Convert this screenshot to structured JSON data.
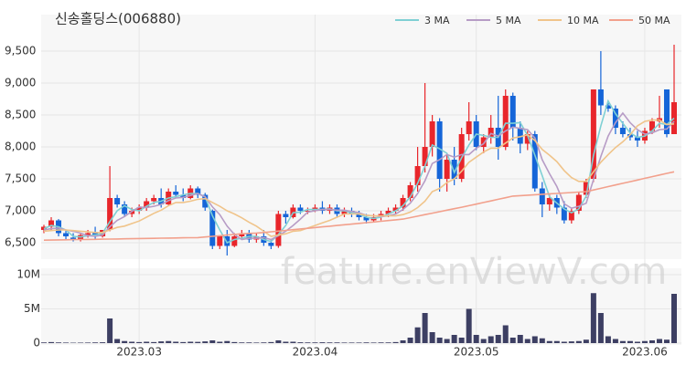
{
  "chart_data": {
    "type": "candlestick",
    "title": "신송홀딩스(006880)",
    "watermark": "feature.enViewV.com",
    "categories": [
      null,
      null,
      null,
      null,
      null,
      null,
      null,
      null,
      null,
      null,
      null,
      null,
      null,
      "2023.03",
      null,
      null,
      null,
      null,
      null,
      null,
      null,
      null,
      null,
      null,
      null,
      null,
      null,
      null,
      null,
      null,
      null,
      null,
      null,
      null,
      null,
      null,
      null,
      "2023.04",
      null,
      null,
      null,
      null,
      null,
      null,
      null,
      null,
      null,
      null,
      null,
      null,
      null,
      null,
      null,
      null,
      null,
      null,
      null,
      null,
      null,
      "2023.05",
      null,
      null,
      null,
      null,
      null,
      null,
      null,
      null,
      null,
      null,
      null,
      null,
      null,
      null,
      null,
      null,
      null,
      null,
      null,
      null,
      null,
      null,
      "2023.06",
      null,
      null,
      null,
      null
    ],
    "open": [
      6700,
      6750,
      6850,
      6650,
      6580,
      6550,
      6600,
      6650,
      6600,
      6700,
      7200,
      7100,
      6950,
      7000,
      7050,
      7150,
      7200,
      7100,
      7300,
      7250,
      7200,
      7350,
      7250,
      7000,
      6450,
      6600,
      6450,
      6600,
      6650,
      6550,
      6600,
      6500,
      6450,
      6950,
      6900,
      7050,
      7000,
      7000,
      7050,
      7000,
      7050,
      6950,
      7000,
      6950,
      6900,
      6850,
      6900,
      6950,
      7000,
      7050,
      7200,
      7400,
      7700,
      8000,
      8400,
      7500,
      7800,
      7500,
      8200,
      8400,
      8000,
      8150,
      8300,
      8000,
      8800,
      8300,
      8050,
      8200,
      7350,
      7100,
      7200,
      7050,
      6850,
      7000,
      7250,
      7500,
      8900,
      8650,
      8600,
      8300,
      8200,
      8150,
      8100,
      8250,
      8400,
      8900,
      8200
    ],
    "high": [
      6780,
      6900,
      6870,
      6700,
      6650,
      6650,
      6700,
      6750,
      6700,
      7700,
      7250,
      7150,
      7050,
      7100,
      7200,
      7250,
      7350,
      7350,
      7400,
      7350,
      7400,
      7380,
      7280,
      7020,
      6600,
      6700,
      6650,
      6700,
      6700,
      6650,
      6700,
      6550,
      7000,
      7000,
      7100,
      7100,
      7050,
      7100,
      7150,
      7100,
      7100,
      7050,
      7050,
      7000,
      6950,
      6950,
      7000,
      7050,
      7100,
      7250,
      7450,
      8000,
      9000,
      8500,
      8450,
      7900,
      8000,
      8300,
      8700,
      8500,
      8200,
      8500,
      8800,
      8900,
      8850,
      8400,
      8250,
      8250,
      7450,
      7250,
      7250,
      7150,
      7050,
      7300,
      7500,
      8900,
      9500,
      8700,
      8650,
      8400,
      8300,
      8250,
      8300,
      8450,
      8800,
      8900,
      9600
    ],
    "low": [
      6650,
      6700,
      6600,
      6550,
      6520,
      6520,
      6580,
      6550,
      6580,
      6680,
      7050,
      6900,
      6900,
      6950,
      7000,
      7100,
      7050,
      7080,
      7200,
      7150,
      7180,
      7200,
      7000,
      6400,
      6400,
      6300,
      6430,
      6550,
      6500,
      6500,
      6450,
      6400,
      6420,
      6800,
      6880,
      6950,
      6950,
      6980,
      6950,
      6950,
      6900,
      6900,
      6900,
      6850,
      6800,
      6830,
      6850,
      6900,
      6950,
      7000,
      7150,
      7300,
      7600,
      7850,
      7300,
      7300,
      7400,
      7450,
      8100,
      7950,
      7900,
      8050,
      7800,
      7950,
      8100,
      7900,
      7950,
      7300,
      6900,
      7000,
      6950,
      6800,
      6800,
      6950,
      7200,
      7450,
      8500,
      8550,
      8200,
      8150,
      8100,
      8000,
      8050,
      8200,
      8300,
      8150,
      8200
    ],
    "close": [
      6750,
      6850,
      6650,
      6600,
      6550,
      6620,
      6650,
      6600,
      6700,
      7200,
      7100,
      6950,
      7000,
      7050,
      7150,
      7200,
      7100,
      7300,
      7250,
      7200,
      7350,
      7250,
      7050,
      6450,
      6600,
      6450,
      6600,
      6650,
      6550,
      6600,
      6500,
      6450,
      6950,
      6900,
      7050,
      7000,
      7000,
      7050,
      7000,
      7050,
      6950,
      7000,
      6950,
      6900,
      6850,
      6900,
      6950,
      7000,
      7050,
      7200,
      7400,
      7700,
      8000,
      8400,
      7500,
      7800,
      7500,
      8200,
      8400,
      8000,
      8150,
      8300,
      8000,
      8800,
      8300,
      8050,
      8200,
      7350,
      7100,
      7200,
      7050,
      6850,
      7000,
      7250,
      7450,
      8900,
      8650,
      8600,
      8300,
      8200,
      8150,
      8100,
      8250,
      8400,
      8450,
      8200,
      8700
    ],
    "up_color": "#e8262b",
    "down_color": "#1565d8",
    "series": [
      {
        "name": "3 MA",
        "color": "#7fd0d4",
        "values": [
          6720,
          6770,
          6750,
          6700,
          6600,
          6590,
          6610,
          6620,
          6650,
          6830,
          7000,
          7080,
          7020,
          7000,
          7070,
          7130,
          7150,
          7200,
          7220,
          7250,
          7270,
          7270,
          7220,
          6920,
          6700,
          6500,
          6550,
          6570,
          6600,
          6600,
          6550,
          6520,
          6630,
          6770,
          6970,
          6980,
          7020,
          7020,
          7020,
          7030,
          7000,
          7000,
          6970,
          6950,
          6900,
          6880,
          6900,
          6950,
          7000,
          7080,
          7220,
          7430,
          7700,
          8030,
          7970,
          7900,
          7600,
          7830,
          8030,
          8200,
          8180,
          8150,
          8150,
          8370,
          8370,
          8380,
          8180,
          7870,
          7550,
          7220,
          7120,
          7030,
          6970,
          7030,
          7230,
          7870,
          8330,
          8720,
          8520,
          8370,
          8220,
          8150,
          8170,
          8250,
          8370,
          8350,
          8450
        ]
      },
      {
        "name": "5 MA",
        "color": "#b79cc6",
        "values": [
          6700,
          6720,
          6730,
          6700,
          6680,
          6650,
          6610,
          6600,
          6620,
          6750,
          6850,
          6910,
          6990,
          7060,
          7050,
          7070,
          7100,
          7160,
          7200,
          7210,
          7240,
          7270,
          7220,
          7060,
          6940,
          6760,
          6630,
          6550,
          6570,
          6570,
          6580,
          6550,
          6610,
          6680,
          6770,
          6870,
          6980,
          7000,
          7020,
          7020,
          7010,
          7010,
          6990,
          6970,
          6930,
          6920,
          6910,
          6920,
          6950,
          7020,
          7120,
          7270,
          7470,
          7740,
          7800,
          7880,
          7840,
          7880,
          7880,
          7980,
          8050,
          8210,
          8170,
          8250,
          8310,
          8290,
          8270,
          8140,
          7800,
          7580,
          7380,
          7110,
          7040,
          7070,
          7120,
          7490,
          7850,
          8170,
          8380,
          8530,
          8380,
          8270,
          8200,
          8220,
          8270,
          8280,
          8400
        ]
      },
      {
        "name": "10 MA",
        "color": "#f0c48a",
        "values": [
          6680,
          6690,
          6700,
          6700,
          6690,
          6680,
          6670,
          6660,
          6660,
          6700,
          6740,
          6760,
          6800,
          6840,
          6900,
          6960,
          7010,
          7080,
          7130,
          7130,
          7150,
          7180,
          7190,
          7130,
          7070,
          7000,
          6950,
          6890,
          6820,
          6760,
          6680,
          6600,
          6620,
          6640,
          6680,
          6690,
          6730,
          6770,
          6810,
          6850,
          6900,
          6950,
          6950,
          6950,
          6930,
          6920,
          6920,
          6920,
          6920,
          6940,
          6980,
          7050,
          7150,
          7300,
          7350,
          7440,
          7500,
          7620,
          7760,
          7840,
          7920,
          7980,
          7980,
          8060,
          8140,
          8160,
          8190,
          8100,
          7960,
          7870,
          7770,
          7630,
          7520,
          7460,
          7460,
          7610,
          7760,
          7880,
          7990,
          8080,
          8190,
          8330,
          8400,
          8420,
          8420,
          8350,
          8360
        ]
      },
      {
        "name": "50 MA",
        "color": "#f2a08c",
        "values": [
          6540,
          6542,
          6544,
          6546,
          6548,
          6550,
          6551,
          6553,
          6555,
          6557,
          6559,
          6561,
          6563,
          6565,
          6567,
          6569,
          6571,
          6573,
          6575,
          6577,
          6578,
          6580,
          6590,
          6600,
          6610,
          6620,
          6630,
          6640,
          6645,
          6652,
          6660,
          6671,
          6682,
          6693,
          6704,
          6715,
          6726,
          6737,
          6748,
          6759,
          6770,
          6781,
          6792,
          6803,
          6814,
          6825,
          6836,
          6847,
          6858,
          6870,
          6893,
          6916,
          6940,
          6963,
          6986,
          7010,
          7033,
          7056,
          7080,
          7105,
          7130,
          7155,
          7180,
          7205,
          7230,
          7237,
          7244,
          7251,
          7258,
          7265,
          7272,
          7279,
          7286,
          7293,
          7300,
          7326,
          7352,
          7378,
          7404,
          7430,
          7456,
          7482,
          7508,
          7534,
          7560,
          7586,
          7610
        ]
      }
    ],
    "ylim": [
      6300,
      10000
    ],
    "yticks": [
      {
        "value": 6500,
        "label": "6,500"
      },
      {
        "value": 7000,
        "label": "7,000"
      },
      {
        "value": 7500,
        "label": "7,500"
      },
      {
        "value": 8000,
        "label": "8,000"
      },
      {
        "value": 8500,
        "label": "8,500"
      },
      {
        "value": 9000,
        "label": "9,000"
      },
      {
        "value": 9500,
        "label": "9,500"
      }
    ],
    "grid": true,
    "volume": {
      "color": "#3d3f63",
      "values": [
        100000,
        150000,
        100000,
        80000,
        60000,
        70000,
        80000,
        100000,
        120000,
        3600000,
        600000,
        300000,
        200000,
        150000,
        200000,
        150000,
        250000,
        300000,
        200000,
        150000,
        200000,
        180000,
        250000,
        400000,
        200000,
        300000,
        150000,
        100000,
        100000,
        80000,
        100000,
        150000,
        400000,
        200000,
        200000,
        120000,
        100000,
        100000,
        120000,
        100000,
        100000,
        80000,
        80000,
        80000,
        100000,
        80000,
        100000,
        100000,
        150000,
        400000,
        800000,
        2300000,
        4400000,
        1600000,
        800000,
        600000,
        1200000,
        800000,
        5000000,
        1200000,
        600000,
        1000000,
        1200000,
        2600000,
        800000,
        1200000,
        600000,
        1000000,
        700000,
        300000,
        300000,
        200000,
        250000,
        300000,
        500000,
        7300000,
        4400000,
        1000000,
        600000,
        300000,
        300000,
        200000,
        300000,
        400000,
        600000,
        500000,
        7200000
      ],
      "ylim": [
        0,
        10000000
      ],
      "yticks": [
        0,
        {
          "value": 5000000,
          "label": "5M"
        },
        {
          "value": 10000000,
          "label": "10M"
        }
      ]
    }
  }
}
